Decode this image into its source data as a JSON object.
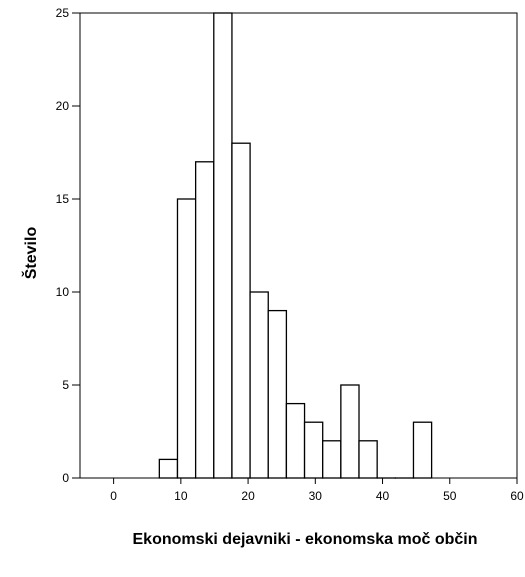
{
  "chart_data": {
    "type": "bar",
    "title": "",
    "xlabel": "Ekonomski dejavniki - ekonomska moč občin",
    "ylabel": "Število",
    "xlim": [
      -5,
      60
    ],
    "ylim": [
      0,
      25
    ],
    "xticks": [
      "0",
      "10",
      "20",
      "30",
      "40",
      "50",
      "60"
    ],
    "yticks": [
      "0",
      "5",
      "10",
      "15",
      "20",
      "25"
    ],
    "grid": false,
    "legend": "none",
    "bin_width": 2.7,
    "bins": [
      {
        "start": 6.8,
        "end": 9.5,
        "count": 1
      },
      {
        "start": 9.5,
        "end": 12.2,
        "count": 15
      },
      {
        "start": 12.2,
        "end": 14.9,
        "count": 17
      },
      {
        "start": 14.9,
        "end": 17.6,
        "count": 25
      },
      {
        "start": 17.6,
        "end": 20.3,
        "count": 18
      },
      {
        "start": 20.3,
        "end": 23.0,
        "count": 10
      },
      {
        "start": 23.0,
        "end": 25.7,
        "count": 9
      },
      {
        "start": 25.7,
        "end": 28.4,
        "count": 4
      },
      {
        "start": 28.4,
        "end": 31.1,
        "count": 3
      },
      {
        "start": 31.1,
        "end": 33.8,
        "count": 2
      },
      {
        "start": 33.8,
        "end": 36.5,
        "count": 5
      },
      {
        "start": 36.5,
        "end": 39.2,
        "count": 2
      },
      {
        "start": 39.2,
        "end": 41.9,
        "count": 0
      },
      {
        "start": 41.9,
        "end": 44.6,
        "count": 0
      },
      {
        "start": 44.6,
        "end": 47.3,
        "count": 3
      }
    ],
    "bar_fill": "#ffffff",
    "bar_stroke": "#000000"
  }
}
